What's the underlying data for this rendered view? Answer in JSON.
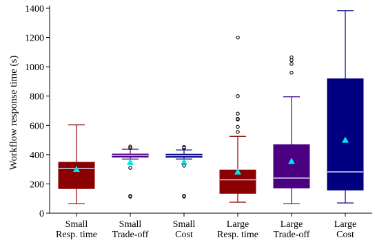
{
  "chart_data": {
    "type": "boxplot",
    "ylabel": "Workflow response time (s)",
    "xlabel": "",
    "ylim": [
      0,
      1400
    ],
    "yticks": [
      0,
      200,
      400,
      600,
      800,
      1000,
      1200,
      1400
    ],
    "grid": false,
    "legend": "none",
    "categories": [
      {
        "line1": "Small",
        "line2": "Resp. time"
      },
      {
        "line1": "Small",
        "line2": "Trade-off"
      },
      {
        "line1": "Small",
        "line2": "Cost"
      },
      {
        "line1": "Large",
        "line2": "Resp. time"
      },
      {
        "line1": "Large",
        "line2": "Trade-off"
      },
      {
        "line1": "Large",
        "line2": "Cost"
      }
    ],
    "boxes": [
      {
        "whisker_low": 65,
        "q1": 168,
        "median": 305,
        "q3": 348,
        "whisker_high": 603,
        "mean": 300,
        "outliers": [],
        "fill": "#8b0000",
        "edge": "#8b0000"
      },
      {
        "whisker_low": 370,
        "q1": 383,
        "median": 395,
        "q3": 404,
        "whisker_high": 437,
        "mean": 348,
        "outliers": [
          113,
          118,
          310,
          445,
          455
        ],
        "fill": "#4b0082",
        "edge": "#4b0082"
      },
      {
        "whisker_low": 370,
        "q1": 382,
        "median": 393,
        "q3": 403,
        "whisker_high": 432,
        "mean": 350,
        "outliers": [
          113,
          118,
          325,
          445,
          452
        ],
        "fill": "#000080",
        "edge": "#000080"
      },
      {
        "whisker_low": 75,
        "q1": 135,
        "median": 228,
        "q3": 295,
        "whisker_high": 525,
        "mean": 283,
        "outliers": [
          555,
          590,
          640,
          645,
          680,
          800,
          1200
        ],
        "fill": "#8b0000",
        "edge": "#8b0000"
      },
      {
        "whisker_low": 65,
        "q1": 172,
        "median": 240,
        "q3": 468,
        "whisker_high": 795,
        "mean": 355,
        "outliers": [
          960,
          1020,
          1045,
          1065
        ],
        "fill": "#4b0082",
        "edge": "#4b0082"
      },
      {
        "whisker_low": 70,
        "q1": 158,
        "median": 282,
        "q3": 918,
        "whisker_high": 1383,
        "mean": 500,
        "outliers": [],
        "fill": "#000080",
        "edge": "#000080"
      }
    ],
    "median_color": "#c8c8e6",
    "mean_marker_color": "#00e5ee"
  }
}
